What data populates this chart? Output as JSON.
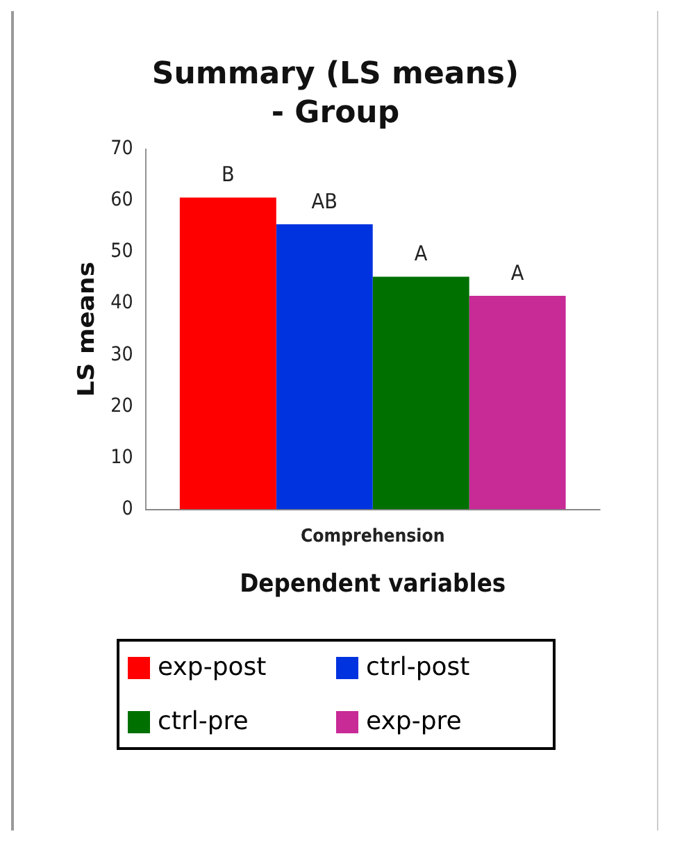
{
  "chart_data": {
    "type": "bar",
    "title": "Summary (LS means) - Group",
    "xlabel": "Dependent variables",
    "ylabel": "LS means",
    "categories": [
      "Comprehension"
    ],
    "series": [
      {
        "name": "exp-post",
        "color": "#ff0000",
        "values": [
          60.6
        ],
        "value_labels": [
          "B"
        ]
      },
      {
        "name": "ctrl-post",
        "color": "#0033e0",
        "values": [
          55.4
        ],
        "value_labels": [
          "AB"
        ]
      },
      {
        "name": "ctrl-pre",
        "color": "#007000",
        "values": [
          45.2
        ],
        "value_labels": [
          "A"
        ]
      },
      {
        "name": "exp-pre",
        "color": "#c82a96",
        "values": [
          41.5
        ],
        "value_labels": [
          "A"
        ]
      }
    ],
    "ylim": [
      0,
      70
    ],
    "yticks": [
      0,
      10,
      20,
      30,
      40,
      50,
      60,
      70
    ],
    "grid": false,
    "legend": "bottom"
  }
}
